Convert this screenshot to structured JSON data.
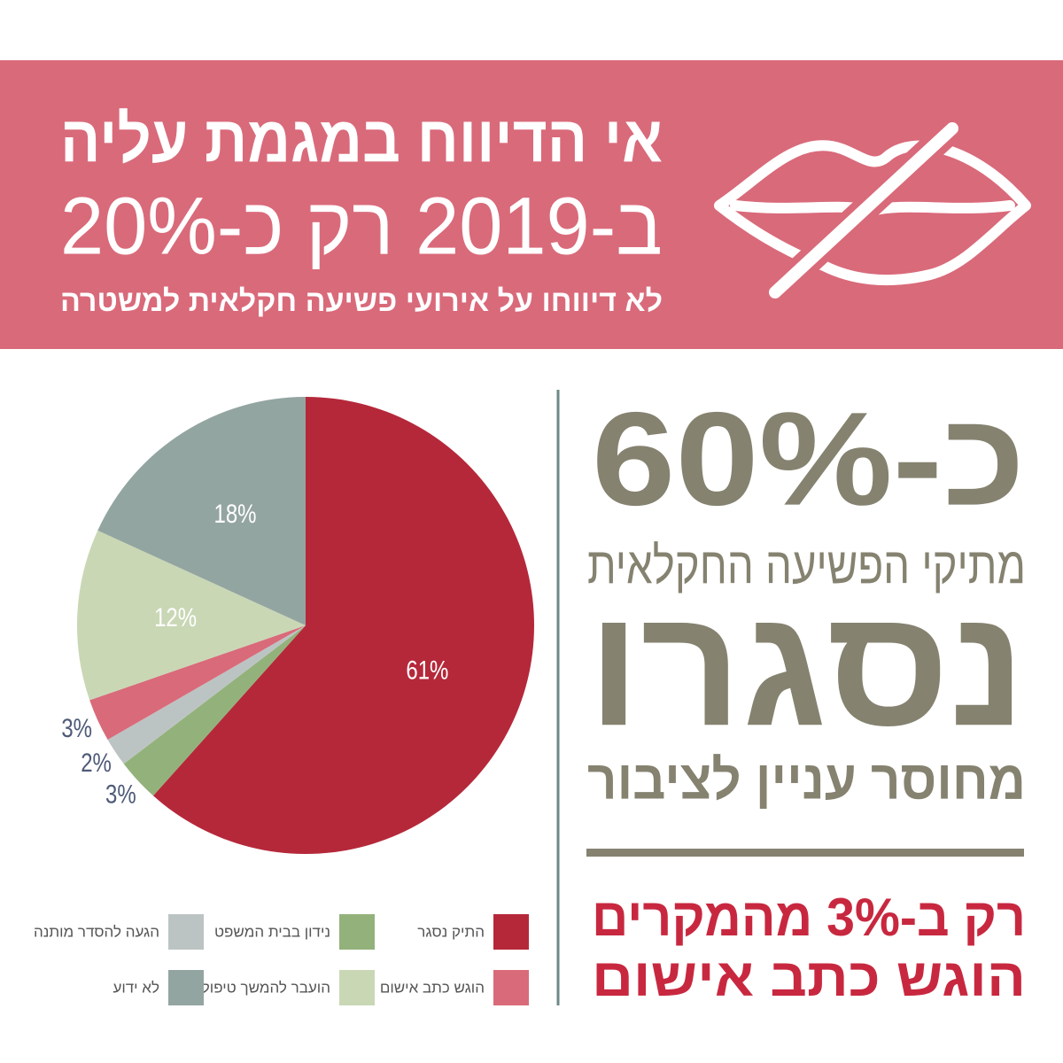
{
  "header": {
    "title": "אי הדיווח במגמת עליה",
    "subtitle": "ב-2019 רק כ-20%",
    "note": "לא דיווחו על אירועי פשיעה חקלאית למשטרה"
  },
  "panel": {
    "big_number": "כ-60%",
    "line1": "מתיקי הפשיעה החקלאית",
    "big_word": "נסגרו",
    "line2": "מחוסר עניין לציבור",
    "highlight1": "רק ב-3% מהמקרים",
    "highlight2": "הוגש כתב אישום"
  },
  "chart_data": {
    "type": "pie",
    "categories": [
      "התיק נסגר",
      "נידון בבית המשפט",
      "הגעה להסדר מותנה",
      "הוגש כתב אישום",
      "הועבר להמשך טיפול",
      "לא ידוע"
    ],
    "values": [
      61,
      3,
      2,
      3,
      12,
      18
    ],
    "value_labels": [
      "61%",
      "3%",
      "2%",
      "3%",
      "12%",
      "18%"
    ],
    "colors": [
      "#b5283a",
      "#93b27b",
      "#bcc4c3",
      "#d96a7a",
      "#c9d7b5",
      "#93a5a1"
    ]
  }
}
